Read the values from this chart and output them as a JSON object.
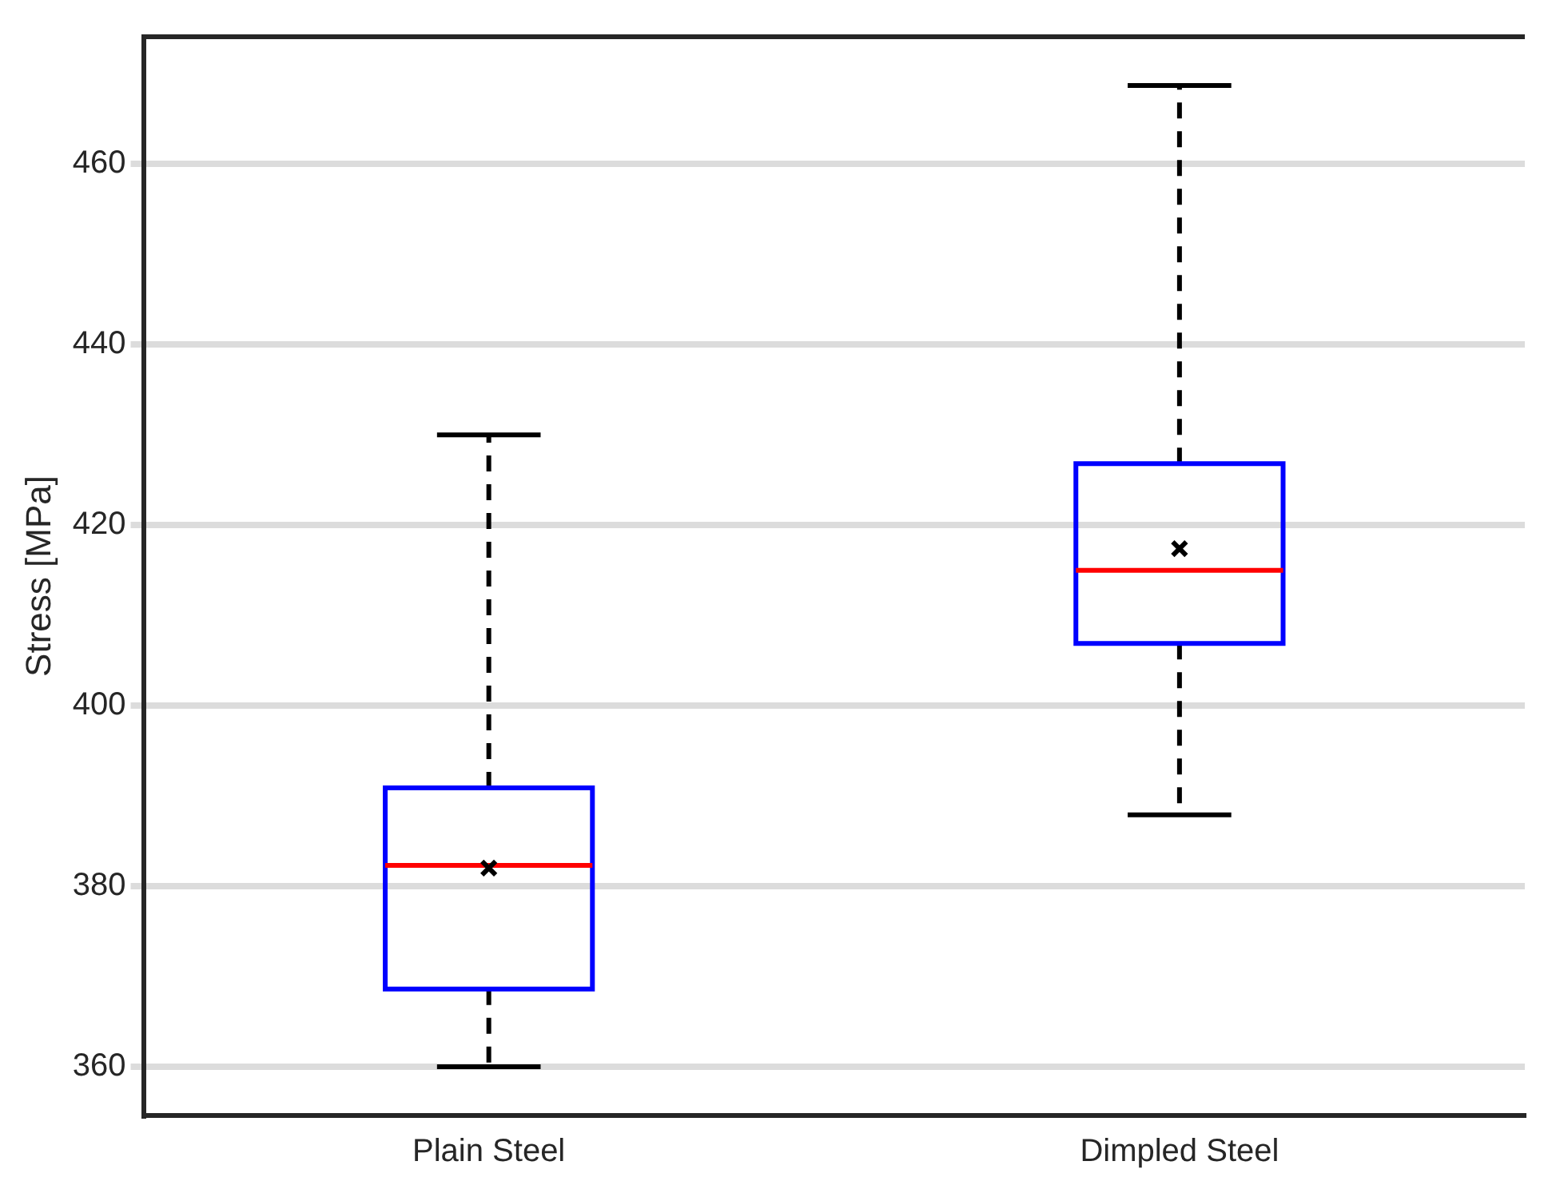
{
  "chart_data": {
    "type": "box",
    "ylabel": "Stress [MPa]",
    "categories": [
      "Plain Steel",
      "Dimpled Steel"
    ],
    "color": "#0000ff",
    "boxes": [
      {
        "low": 360,
        "q1": 368.6,
        "median": 382.3,
        "q3": 390.9,
        "high": 430,
        "mean": 382
      },
      {
        "low": 387.9,
        "q1": 406.9,
        "median": 415,
        "q3": 426.8,
        "high": 468.7,
        "mean": 417.4
      }
    ],
    "ylim": [
      354.6,
      474.1
    ],
    "yticks": [
      360,
      380,
      400,
      420,
      440,
      460
    ],
    "grid": "y",
    "marker": "cross",
    "legend": false
  }
}
